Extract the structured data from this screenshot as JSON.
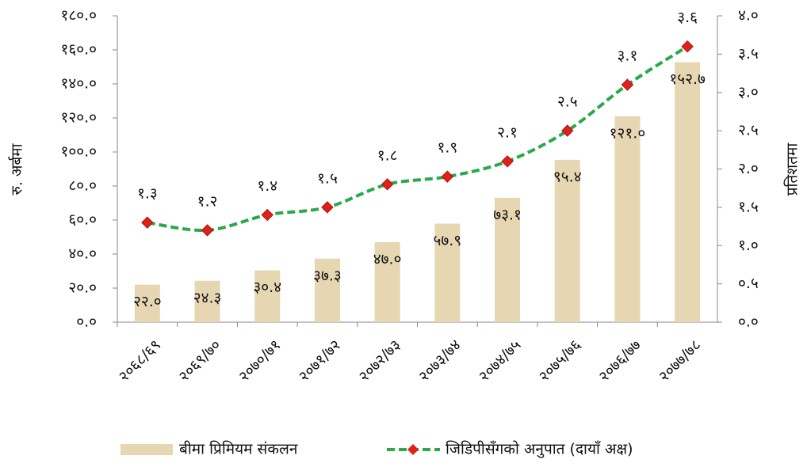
{
  "chart_data": {
    "type": "bar",
    "categories": [
      "२०६८/६९",
      "२०६९/७०",
      "२०७०/७१",
      "२०७१/७२",
      "२०७२/७३",
      "२०७३/७४",
      "२०७४/७५",
      "२०७५/७६",
      "२०७६/७७",
      "२०७७/७८"
    ],
    "series": [
      {
        "name": "बीमा प्रिमियम संकलन",
        "type": "bar",
        "color": "#e6d6b1",
        "values": [
          22.0,
          24.3,
          30.4,
          37.3,
          47.0,
          57.9,
          73.1,
          95.4,
          121.0,
          152.7
        ],
        "value_labels": [
          "२२.०",
          "२४.३",
          "३०.४",
          "३७.३",
          "४७.०",
          "५७.९",
          "७३.१",
          "९५.४",
          "१२१.०",
          "१५२.७"
        ]
      },
      {
        "name": "जिडिपीसँगको अनुपात (दायाँ अक्ष)",
        "type": "line",
        "axis": "y2",
        "color": "#2aa84a",
        "marker_color": "#e0201b",
        "values": [
          1.3,
          1.2,
          1.4,
          1.5,
          1.8,
          1.9,
          2.1,
          2.5,
          3.1,
          3.6
        ],
        "value_labels": [
          "१.३",
          "१.२",
          "१.४",
          "१.५",
          "१.८",
          "१.९",
          "२.१",
          "२.५",
          "३.१",
          "३.६"
        ]
      }
    ],
    "ylabel": "रु. अर्बमा",
    "y2label": "प्रतिशतमा",
    "ylim": [
      0,
      180
    ],
    "yticks": [
      {
        "value": 0,
        "label": "०.०"
      },
      {
        "value": 20,
        "label": "२०.०"
      },
      {
        "value": 40,
        "label": "४०.०"
      },
      {
        "value": 60,
        "label": "६०.०"
      },
      {
        "value": 80,
        "label": "८०.०"
      },
      {
        "value": 100,
        "label": "१००.०"
      },
      {
        "value": 120,
        "label": "१२०.०"
      },
      {
        "value": 140,
        "label": "१४०.०"
      },
      {
        "value": 160,
        "label": "१६०.०"
      },
      {
        "value": 180,
        "label": "१८०.०"
      }
    ],
    "y2lim": [
      0,
      4
    ],
    "y2ticks": [
      {
        "value": 0,
        "label": "०.०"
      },
      {
        "value": 0.5,
        "label": "०.५"
      },
      {
        "value": 1,
        "label": "१.०"
      },
      {
        "value": 1.5,
        "label": "१.५"
      },
      {
        "value": 2,
        "label": "२.०"
      },
      {
        "value": 2.5,
        "label": "२.५"
      },
      {
        "value": 3,
        "label": "३.०"
      },
      {
        "value": 3.5,
        "label": "३.५"
      },
      {
        "value": 4,
        "label": "४.०"
      }
    ],
    "legend": "bottom"
  }
}
